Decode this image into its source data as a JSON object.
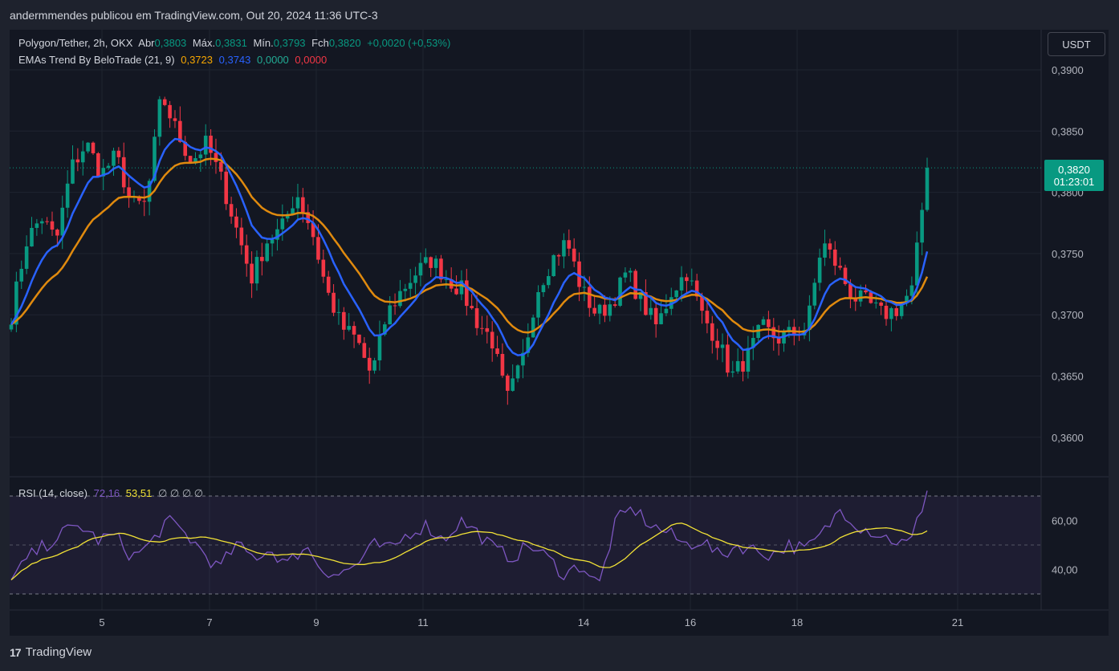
{
  "header": {
    "text": "andermmendes publicou em TradingView.com, Out 20, 2024 11:36 UTC-3"
  },
  "legend": {
    "symbol": "Polygon/Tether, 2h, OKX",
    "open_label": "Abr",
    "open": "0,3803",
    "high_label": "Máx.",
    "high": "0,3831",
    "low_label": "Mín.",
    "low": "0,3793",
    "close_label": "Fch",
    "close": "0,3820",
    "change": "+0,0020 (+0,53%)",
    "ema_name": "EMAs Trend By BeloTrade (21, 9)",
    "ema_slow": "0,3723",
    "ema_fast": "0,3743",
    "ema_v3": "0,0000",
    "ema_v4": "0,0000",
    "rsi_name": "RSI (14, close)",
    "rsi_value": "72,16",
    "rsi_ma": "53,51",
    "rsi_empty": "∅ ∅ ∅ ∅"
  },
  "currency": "USDT",
  "last_price": {
    "price": "0,3820",
    "countdown": "01:23:01"
  },
  "footer": {
    "brand": "TradingView",
    "logo": "17"
  },
  "colors": {
    "up": "#089981",
    "down": "#f23645",
    "ema_fast": "#2962ff",
    "ema_slow": "#e08a0e",
    "rsi": "#7e57c2",
    "rsi_ma": "#f2e236"
  },
  "chart_data": {
    "type": "candlestick",
    "price_axis": {
      "min": 0.357,
      "max": 0.391,
      "ticks": [
        "0,3900",
        "0,3850",
        "0,3800",
        "0,3750",
        "0,3700",
        "0,3650",
        "0,3600"
      ],
      "tick_values": [
        0.39,
        0.385,
        0.38,
        0.375,
        0.37,
        0.365,
        0.36
      ]
    },
    "time_axis": {
      "ticks": [
        "5",
        "7",
        "9",
        "11",
        "14",
        "16",
        "18",
        "21"
      ]
    },
    "rsi_axis": {
      "ticks": [
        "60,00",
        "40,00"
      ],
      "tick_values": [
        60,
        40
      ],
      "upper": 70,
      "middle": 50,
      "lower": 30
    },
    "price_anchors": [
      0.37,
      0.376,
      0.378,
      0.376,
      0.382,
      0.384,
      0.3815,
      0.383,
      0.379,
      0.379,
      0.388,
      0.385,
      0.3825,
      0.384,
      0.381,
      0.377,
      0.373,
      0.376,
      0.377,
      0.38,
      0.377,
      0.372,
      0.369,
      0.368,
      0.365,
      0.37,
      0.372,
      0.3735,
      0.3745,
      0.373,
      0.372,
      0.3695,
      0.368,
      0.363,
      0.366,
      0.372,
      0.3745,
      0.376,
      0.372,
      0.37,
      0.371,
      0.3735,
      0.371,
      0.369,
      0.372,
      0.3735,
      0.37,
      0.368,
      0.365,
      0.3665,
      0.369,
      0.368,
      0.3685,
      0.369,
      0.376,
      0.374,
      0.3715,
      0.371,
      0.37,
      0.3705,
      0.372,
      0.382
    ],
    "rsi_anchors": [
      35,
      45,
      50,
      55,
      58,
      52,
      54,
      45,
      50,
      60,
      55,
      48,
      40,
      50,
      45,
      48,
      42,
      50,
      40,
      38,
      42,
      50,
      48,
      55,
      58,
      52,
      60,
      55,
      48,
      45,
      50,
      45,
      38,
      42,
      33,
      60,
      65,
      58,
      55,
      50,
      52,
      45,
      50,
      48,
      46,
      50,
      48,
      55,
      65,
      58,
      55,
      52,
      50,
      72
    ]
  }
}
